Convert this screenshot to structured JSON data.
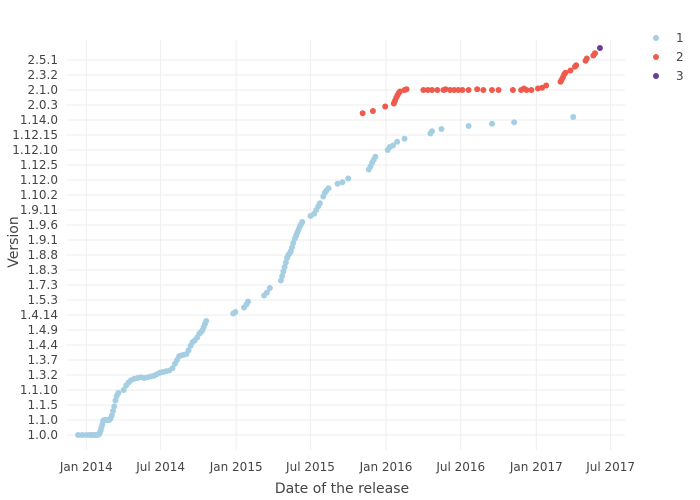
{
  "chart_data": {
    "type": "scatter",
    "xlabel": "Date of the release",
    "ylabel": "Version",
    "x_ticks": [
      "Jan 2014",
      "Jul 2014",
      "Jan 2015",
      "Jul 2015",
      "Jan 2016",
      "Jul 2016",
      "Jan 2017",
      "Jul 2017"
    ],
    "y_ticks": [
      "1.0.0",
      "1.1.0",
      "1.1.5",
      "1.1.10",
      "1.3.2",
      "1.3.7",
      "1.4.4",
      "1.4.9",
      "1.4.14",
      "1.5.3",
      "1.7.3",
      "1.8.3",
      "1.8.8",
      "1.9.1",
      "1.9.6",
      "1.9.11",
      "1.10.2",
      "1.12.0",
      "1.12.5",
      "1.12.10",
      "1.12.15",
      "1.14.0",
      "2.0.3",
      "2.1.0",
      "2.3.2",
      "2.5.1"
    ],
    "xlim": [
      "2013-11-15",
      "2017-08-05"
    ],
    "grid": true,
    "legend_position": "top-right",
    "legend_entries": [
      "1",
      "2",
      "3"
    ],
    "colors": {
      "1": "#a6cee3",
      "2": "#ef5a4c",
      "3": "#6a3d9a"
    },
    "series": [
      {
        "name": "1",
        "points": [
          [
            "2013-12-12",
            0.0
          ],
          [
            "2013-12-22",
            0.0
          ],
          [
            "2014-01-01",
            0.0
          ],
          [
            "2014-01-09",
            0.0
          ],
          [
            "2014-01-14",
            0.0
          ],
          [
            "2014-01-19",
            0.0
          ],
          [
            "2014-01-24",
            0.0
          ],
          [
            "2014-01-28",
            0.0
          ],
          [
            "2014-02-01",
            0.05
          ],
          [
            "2014-02-03",
            0.15
          ],
          [
            "2014-02-05",
            0.3
          ],
          [
            "2014-02-07",
            0.5
          ],
          [
            "2014-02-09",
            0.7
          ],
          [
            "2014-02-11",
            0.95
          ],
          [
            "2014-02-14",
            1.0
          ],
          [
            "2014-02-18",
            1.0
          ],
          [
            "2014-02-22",
            1.0
          ],
          [
            "2014-02-26",
            1.0
          ],
          [
            "2014-03-01",
            1.1
          ],
          [
            "2014-03-04",
            1.3
          ],
          [
            "2014-03-07",
            1.6
          ],
          [
            "2014-03-10",
            1.9
          ],
          [
            "2014-03-13",
            2.3
          ],
          [
            "2014-03-16",
            2.6
          ],
          [
            "2014-03-20",
            2.8
          ],
          [
            "2014-04-02",
            3.0
          ],
          [
            "2014-04-08",
            3.3
          ],
          [
            "2014-04-14",
            3.5
          ],
          [
            "2014-04-20",
            3.65
          ],
          [
            "2014-04-28",
            3.75
          ],
          [
            "2014-05-06",
            3.8
          ],
          [
            "2014-05-14",
            3.85
          ],
          [
            "2014-05-22",
            3.8
          ],
          [
            "2014-05-30",
            3.85
          ],
          [
            "2014-06-07",
            3.9
          ],
          [
            "2014-06-15",
            3.95
          ],
          [
            "2014-06-22",
            4.05
          ],
          [
            "2014-06-29",
            4.15
          ],
          [
            "2014-07-06",
            4.2
          ],
          [
            "2014-07-14",
            4.25
          ],
          [
            "2014-07-22",
            4.3
          ],
          [
            "2014-07-30",
            4.45
          ],
          [
            "2014-08-05",
            4.75
          ],
          [
            "2014-08-10",
            5.0
          ],
          [
            "2014-08-15",
            5.25
          ],
          [
            "2014-08-20",
            5.3
          ],
          [
            "2014-08-26",
            5.35
          ],
          [
            "2014-09-02",
            5.4
          ],
          [
            "2014-09-07",
            5.65
          ],
          [
            "2014-09-12",
            5.95
          ],
          [
            "2014-09-17",
            6.2
          ],
          [
            "2014-09-22",
            6.3
          ],
          [
            "2014-09-28",
            6.5
          ],
          [
            "2014-10-03",
            6.75
          ],
          [
            "2014-10-07",
            6.85
          ],
          [
            "2014-10-11",
            7.0
          ],
          [
            "2014-10-14",
            7.2
          ],
          [
            "2014-10-17",
            7.4
          ],
          [
            "2014-10-20",
            7.6
          ],
          [
            "2014-12-25",
            8.1
          ],
          [
            "2014-12-30",
            8.2
          ],
          [
            "2015-01-20",
            8.5
          ],
          [
            "2015-01-26",
            8.7
          ],
          [
            "2015-01-30",
            8.9
          ],
          [
            "2015-03-10",
            9.3
          ],
          [
            "2015-03-17",
            9.5
          ],
          [
            "2015-03-24",
            9.8
          ],
          [
            "2015-04-20",
            10.3
          ],
          [
            "2015-04-23",
            10.6
          ],
          [
            "2015-04-26",
            10.9
          ],
          [
            "2015-04-29",
            11.2
          ],
          [
            "2015-05-02",
            11.5
          ],
          [
            "2015-05-05",
            11.8
          ],
          [
            "2015-05-08",
            12.0
          ],
          [
            "2015-05-11",
            12.1
          ],
          [
            "2015-05-14",
            12.25
          ],
          [
            "2015-05-17",
            12.5
          ],
          [
            "2015-05-20",
            12.8
          ],
          [
            "2015-05-24",
            13.1
          ],
          [
            "2015-05-27",
            13.3
          ],
          [
            "2015-05-30",
            13.5
          ],
          [
            "2015-06-02",
            13.7
          ],
          [
            "2015-06-05",
            13.9
          ],
          [
            "2015-06-08",
            14.05
          ],
          [
            "2015-06-11",
            14.2
          ],
          [
            "2015-07-01",
            14.6
          ],
          [
            "2015-07-10",
            14.75
          ],
          [
            "2015-07-15",
            15.0
          ],
          [
            "2015-07-20",
            15.25
          ],
          [
            "2015-07-24",
            15.45
          ],
          [
            "2015-08-01",
            15.9
          ],
          [
            "2015-08-05",
            16.15
          ],
          [
            "2015-08-09",
            16.3
          ],
          [
            "2015-08-14",
            16.45
          ],
          [
            "2015-09-05",
            16.75
          ],
          [
            "2015-09-17",
            16.85
          ],
          [
            "2015-10-01",
            17.1
          ],
          [
            "2015-11-20",
            17.7
          ],
          [
            "2015-11-24",
            17.9
          ],
          [
            "2015-11-28",
            18.15
          ],
          [
            "2015-12-02",
            18.35
          ],
          [
            "2015-12-06",
            18.55
          ],
          [
            "2016-01-05",
            19.0
          ],
          [
            "2016-01-10",
            19.2
          ],
          [
            "2016-01-18",
            19.3
          ],
          [
            "2016-01-28",
            19.55
          ],
          [
            "2016-02-15",
            19.75
          ],
          [
            "2016-04-18",
            20.1
          ],
          [
            "2016-04-22",
            20.25
          ],
          [
            "2016-05-15",
            20.4
          ],
          [
            "2016-07-20",
            20.6
          ],
          [
            "2016-09-15",
            20.75
          ],
          [
            "2016-11-08",
            20.85
          ],
          [
            "2017-04-01",
            21.2
          ]
        ]
      },
      {
        "name": "2",
        "points": [
          [
            "2015-11-05",
            21.45
          ],
          [
            "2015-11-30",
            21.6
          ],
          [
            "2015-12-30",
            21.9
          ],
          [
            "2016-01-20",
            22.1
          ],
          [
            "2016-01-23",
            22.3
          ],
          [
            "2016-01-26",
            22.5
          ],
          [
            "2016-01-29",
            22.65
          ],
          [
            "2016-02-01",
            22.8
          ],
          [
            "2016-02-04",
            22.9
          ],
          [
            "2016-02-15",
            23.0
          ],
          [
            "2016-02-20",
            23.05
          ],
          [
            "2016-04-01",
            23.0
          ],
          [
            "2016-04-12",
            23.0
          ],
          [
            "2016-04-22",
            23.0
          ],
          [
            "2016-05-05",
            23.0
          ],
          [
            "2016-05-20",
            23.0
          ],
          [
            "2016-05-25",
            23.05
          ],
          [
            "2016-06-05",
            23.0
          ],
          [
            "2016-06-15",
            23.0
          ],
          [
            "2016-06-25",
            23.0
          ],
          [
            "2016-07-05",
            23.0
          ],
          [
            "2016-07-20",
            23.0
          ],
          [
            "2016-08-10",
            23.05
          ],
          [
            "2016-08-25",
            23.0
          ],
          [
            "2016-09-15",
            23.0
          ],
          [
            "2016-10-01",
            23.0
          ],
          [
            "2016-11-05",
            23.0
          ],
          [
            "2016-11-25",
            23.0
          ],
          [
            "2016-12-02",
            23.1
          ],
          [
            "2016-12-08",
            23.0
          ],
          [
            "2016-12-20",
            23.0
          ],
          [
            "2017-01-05",
            23.1
          ],
          [
            "2017-01-15",
            23.15
          ],
          [
            "2017-01-25",
            23.3
          ],
          [
            "2017-03-01",
            23.55
          ],
          [
            "2017-03-04",
            23.7
          ],
          [
            "2017-03-07",
            23.85
          ],
          [
            "2017-03-10",
            24.05
          ],
          [
            "2017-03-13",
            24.15
          ],
          [
            "2017-03-25",
            24.3
          ],
          [
            "2017-04-05",
            24.55
          ],
          [
            "2017-04-08",
            24.65
          ],
          [
            "2017-05-01",
            24.95
          ],
          [
            "2017-05-04",
            25.1
          ],
          [
            "2017-05-20",
            25.3
          ],
          [
            "2017-05-24",
            25.45
          ]
        ]
      },
      {
        "name": "3",
        "points": [
          [
            "2017-06-05",
            25.8
          ]
        ]
      }
    ]
  }
}
